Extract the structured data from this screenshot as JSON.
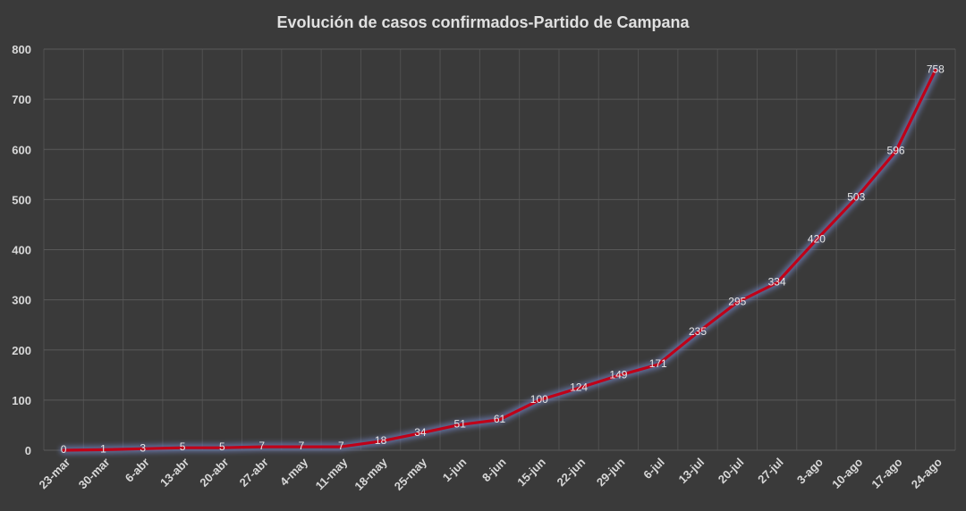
{
  "chart_data": {
    "type": "line",
    "title": "Evolución  de casos confirmados-Partido  de Campana",
    "xlabel": "",
    "ylabel": "",
    "categories": [
      "23-mar",
      "30-mar",
      "6-abr",
      "13-abr",
      "20-abr",
      "27-abr",
      "4-may",
      "11-may",
      "18-may",
      "25-may",
      "1-jun",
      "8-jun",
      "15-jun",
      "22-jun",
      "29-jun",
      "6-jul",
      "13-jul",
      "20-jul",
      "27-jul",
      "3-ago",
      "10-ago",
      "17-ago",
      "24-ago"
    ],
    "series": [
      {
        "values": [
          0,
          1,
          3,
          5,
          5,
          7,
          7,
          7,
          18,
          34,
          51,
          61,
          100,
          124,
          149,
          171,
          235,
          295,
          334,
          420,
          503,
          596,
          758
        ]
      }
    ],
    "ylim": [
      0,
      800
    ],
    "yticks": [
      0,
      100,
      200,
      300,
      400,
      500,
      600,
      700,
      800
    ],
    "grid": true,
    "legend": "none",
    "colors": {
      "background": "#3a3a3a",
      "line": "#c00018",
      "glow": "#6f7fb8",
      "text": "#d8d8d8",
      "grid": "#595959"
    }
  }
}
